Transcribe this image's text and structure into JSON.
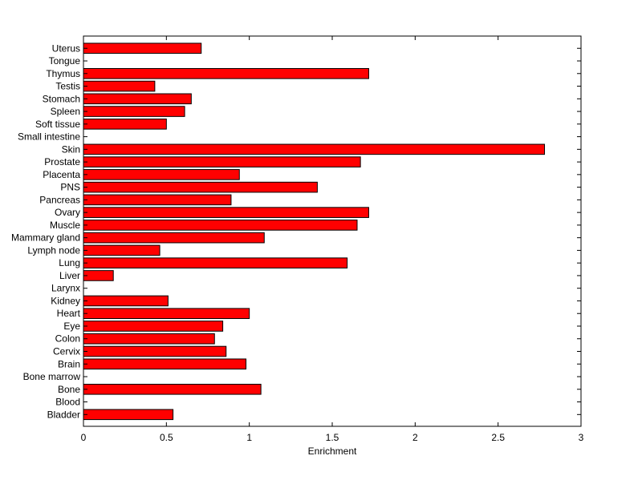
{
  "chart_data": {
    "type": "bar",
    "orientation": "horizontal",
    "categories": [
      "Bladder",
      "Blood",
      "Bone",
      "Bone marrow",
      "Brain",
      "Cervix",
      "Colon",
      "Eye",
      "Heart",
      "Kidney",
      "Larynx",
      "Liver",
      "Lung",
      "Lymph node",
      "Mammary gland",
      "Muscle",
      "Ovary",
      "Pancreas",
      "PNS",
      "Placenta",
      "Prostate",
      "Skin",
      "Small intestine",
      "Soft tissue",
      "Spleen",
      "Stomach",
      "Testis",
      "Thymus",
      "Tongue",
      "Uterus"
    ],
    "values": [
      0.54,
      0,
      1.07,
      0,
      0.98,
      0.86,
      0.79,
      0.84,
      1.0,
      0.51,
      0,
      0.18,
      1.59,
      0.46,
      1.09,
      1.65,
      1.72,
      0.89,
      1.41,
      0.94,
      1.67,
      2.78,
      0,
      0.5,
      0.61,
      0.65,
      0.43,
      1.72,
      0,
      0.71
    ],
    "title": "",
    "xlabel": "Enrichment",
    "ylabel": "",
    "xlim": [
      0,
      3
    ],
    "xticks": [
      "0",
      "0.5",
      "1",
      "1.5",
      "2",
      "2.5",
      "3"
    ],
    "grid": false,
    "bar_color": "#ff0000",
    "bar_edge_color": "#000000"
  }
}
